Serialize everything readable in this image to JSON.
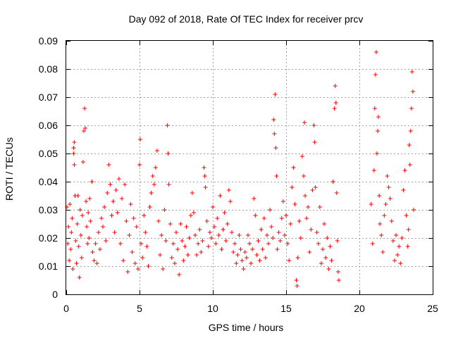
{
  "chart_data": {
    "type": "scatter",
    "title": "Day 092 of 2018, Rate Of TEC Index for receiver prcv",
    "xlabel": "GPS time / hours",
    "ylabel": "ROTI / TECUs",
    "xlim": [
      0,
      25
    ],
    "ylim": [
      0,
      0.09
    ],
    "xticks": [
      "0",
      "5",
      "10",
      "15",
      "20",
      "25"
    ],
    "yticks": [
      "0",
      "0.01",
      "0.02",
      "0.03",
      "0.04",
      "0.05",
      "0.06",
      "0.07",
      "0.08",
      "0.09"
    ],
    "grid": true,
    "marker": "plus",
    "color": "#ff0000",
    "series": [
      {
        "points": [
          [
            0.05,
            0.031
          ],
          [
            0.1,
            0.018
          ],
          [
            0.15,
            0.024
          ],
          [
            0.2,
            0.012
          ],
          [
            0.25,
            0.032
          ],
          [
            0.3,
            0.016
          ],
          [
            0.35,
            0.022
          ],
          [
            0.4,
            0.027
          ],
          [
            0.45,
            0.009
          ],
          [
            0.5,
            0.052
          ],
          [
            0.5,
            0.05
          ],
          [
            0.55,
            0.054
          ],
          [
            0.55,
            0.046
          ],
          [
            0.6,
            0.035
          ],
          [
            0.65,
            0.019
          ],
          [
            0.7,
            0.011
          ],
          [
            0.75,
            0.025
          ],
          [
            0.8,
            0.035
          ],
          [
            0.85,
            0.017
          ],
          [
            0.9,
            0.006
          ],
          [
            0.95,
            0.03
          ],
          [
            1.0,
            0.021
          ],
          [
            1.05,
            0.013
          ],
          [
            1.1,
            0.028
          ],
          [
            1.15,
            0.047
          ],
          [
            1.2,
            0.058
          ],
          [
            1.25,
            0.066
          ],
          [
            1.3,
            0.059
          ],
          [
            1.35,
            0.033
          ],
          [
            1.4,
            0.024
          ],
          [
            1.45,
            0.018
          ],
          [
            1.5,
            0.029
          ],
          [
            1.55,
            0.02
          ],
          [
            1.6,
            0.034
          ],
          [
            1.65,
            0.026
          ],
          [
            1.75,
            0.04
          ],
          [
            1.8,
            0.015
          ],
          [
            1.9,
            0.012
          ],
          [
            2.0,
            0.018
          ],
          [
            2.1,
            0.011
          ],
          [
            2.2,
            0.022
          ],
          [
            2.3,
            0.016
          ],
          [
            2.4,
            0.027
          ],
          [
            2.5,
            0.024
          ],
          [
            2.6,
            0.031
          ],
          [
            2.7,
            0.019
          ],
          [
            2.8,
            0.036
          ],
          [
            2.9,
            0.046
          ],
          [
            3.0,
            0.039
          ],
          [
            3.1,
            0.028
          ],
          [
            3.2,
            0.033
          ],
          [
            3.3,
            0.022
          ],
          [
            3.4,
            0.037
          ],
          [
            3.5,
            0.029
          ],
          [
            3.6,
            0.041
          ],
          [
            3.7,
            0.018
          ],
          [
            3.8,
            0.034
          ],
          [
            3.9,
            0.012
          ],
          [
            4.0,
            0.039
          ],
          [
            4.1,
            0.026
          ],
          [
            4.2,
            0.008
          ],
          [
            4.3,
            0.021
          ],
          [
            4.4,
            0.032
          ],
          [
            4.5,
            0.015
          ],
          [
            4.6,
            0.027
          ],
          [
            4.7,
            0.011
          ],
          [
            4.8,
            0.024
          ],
          [
            4.9,
            0.009
          ],
          [
            5.0,
            0.046
          ],
          [
            5.05,
            0.055
          ],
          [
            5.1,
            0.018
          ],
          [
            5.2,
            0.013
          ],
          [
            5.3,
            0.028
          ],
          [
            5.4,
            0.022
          ],
          [
            5.5,
            0.017
          ],
          [
            5.6,
            0.01
          ],
          [
            5.7,
            0.031
          ],
          [
            5.8,
            0.036
          ],
          [
            5.9,
            0.042
          ],
          [
            6.0,
            0.039
          ],
          [
            6.1,
            0.045
          ],
          [
            6.2,
            0.051
          ],
          [
            6.3,
            0.026
          ],
          [
            6.4,
            0.014
          ],
          [
            6.5,
            0.021
          ],
          [
            6.6,
            0.009
          ],
          [
            6.7,
            0.03
          ],
          [
            6.8,
            0.019
          ],
          [
            6.9,
            0.06
          ],
          [
            6.95,
            0.05
          ],
          [
            7.0,
            0.039
          ],
          [
            7.1,
            0.025
          ],
          [
            7.2,
            0.013
          ],
          [
            7.3,
            0.018
          ],
          [
            7.4,
            0.011
          ],
          [
            7.5,
            0.022
          ],
          [
            7.6,
            0.016
          ],
          [
            7.7,
            0.007
          ],
          [
            7.8,
            0.025
          ],
          [
            7.9,
            0.019
          ],
          [
            8.0,
            0.012
          ],
          [
            8.1,
            0.017
          ],
          [
            8.2,
            0.024
          ],
          [
            8.3,
            0.014
          ],
          [
            8.4,
            0.02
          ],
          [
            8.5,
            0.028
          ],
          [
            8.6,
            0.036
          ],
          [
            8.7,
            0.029
          ],
          [
            8.8,
            0.021
          ],
          [
            8.9,
            0.014
          ],
          [
            9.0,
            0.018
          ],
          [
            9.1,
            0.023
          ],
          [
            9.2,
            0.015
          ],
          [
            9.3,
            0.019
          ],
          [
            9.4,
            0.045
          ],
          [
            9.45,
            0.042
          ],
          [
            9.5,
            0.038
          ],
          [
            9.6,
            0.026
          ],
          [
            9.7,
            0.017
          ],
          [
            9.8,
            0.022
          ],
          [
            9.9,
            0.02
          ],
          [
            10.0,
            0.031
          ],
          [
            10.1,
            0.024
          ],
          [
            10.2,
            0.018
          ],
          [
            10.3,
            0.027
          ],
          [
            10.4,
            0.021
          ],
          [
            10.5,
            0.035
          ],
          [
            10.6,
            0.016
          ],
          [
            10.7,
            0.023
          ],
          [
            10.8,
            0.029
          ],
          [
            10.9,
            0.019
          ],
          [
            11.0,
            0.025
          ],
          [
            11.1,
            0.037
          ],
          [
            11.2,
            0.033
          ],
          [
            11.3,
            0.022
          ],
          [
            11.4,
            0.015
          ],
          [
            11.5,
            0.018
          ],
          [
            11.6,
            0.011
          ],
          [
            11.7,
            0.014
          ],
          [
            11.8,
            0.021
          ],
          [
            11.9,
            0.016
          ],
          [
            12.0,
            0.012
          ],
          [
            12.1,
            0.009
          ],
          [
            12.2,
            0.015
          ],
          [
            12.3,
            0.013
          ],
          [
            12.4,
            0.021
          ],
          [
            12.5,
            0.018
          ],
          [
            12.6,
            0.011
          ],
          [
            12.7,
            0.016
          ],
          [
            12.8,
            0.034
          ],
          [
            12.9,
            0.028
          ],
          [
            13.0,
            0.014
          ],
          [
            13.1,
            0.019
          ],
          [
            13.2,
            0.012
          ],
          [
            13.3,
            0.023
          ],
          [
            13.4,
            0.016
          ],
          [
            13.5,
            0.027
          ],
          [
            13.6,
            0.013
          ],
          [
            13.7,
            0.021
          ],
          [
            13.8,
            0.018
          ],
          [
            13.9,
            0.03
          ],
          [
            14.0,
            0.024
          ],
          [
            14.1,
            0.02
          ],
          [
            14.15,
            0.062
          ],
          [
            14.2,
            0.057
          ],
          [
            14.25,
            0.071
          ],
          [
            14.3,
            0.052
          ],
          [
            14.35,
            0.042
          ],
          [
            14.4,
            0.016
          ],
          [
            14.5,
            0.022
          ],
          [
            14.6,
            0.019
          ],
          [
            14.7,
            0.027
          ],
          [
            14.8,
            0.033
          ],
          [
            14.9,
            0.021
          ],
          [
            15.0,
            0.028
          ],
          [
            15.1,
            0.018
          ],
          [
            15.2,
            0.012
          ],
          [
            15.3,
            0.025
          ],
          [
            15.4,
            0.038
          ],
          [
            15.5,
            0.045
          ],
          [
            15.6,
            0.032
          ],
          [
            15.7,
            0.005
          ],
          [
            15.75,
            0.003
          ],
          [
            15.8,
            0.013
          ],
          [
            15.9,
            0.026
          ],
          [
            16.0,
            0.02
          ],
          [
            16.1,
            0.049
          ],
          [
            16.2,
            0.042
          ],
          [
            16.25,
            0.061
          ],
          [
            16.3,
            0.035
          ],
          [
            16.4,
            0.027
          ],
          [
            16.5,
            0.031
          ],
          [
            16.6,
            0.015
          ],
          [
            16.7,
            0.023
          ],
          [
            16.8,
            0.037
          ],
          [
            16.9,
            0.06
          ],
          [
            16.95,
            0.054
          ],
          [
            17.0,
            0.038
          ],
          [
            17.1,
            0.022
          ],
          [
            17.2,
            0.018
          ],
          [
            17.3,
            0.031
          ],
          [
            17.4,
            0.011
          ],
          [
            17.5,
            0.016
          ],
          [
            17.6,
            0.025
          ],
          [
            17.7,
            0.013
          ],
          [
            17.8,
            0.02
          ],
          [
            17.9,
            0.009
          ],
          [
            18.0,
            0.017
          ],
          [
            18.1,
            0.012
          ],
          [
            18.2,
            0.04
          ],
          [
            18.3,
            0.066
          ],
          [
            18.35,
            0.074
          ],
          [
            18.4,
            0.068
          ],
          [
            18.45,
            0.036
          ],
          [
            18.5,
            0.019
          ],
          [
            18.55,
            0.008
          ],
          [
            18.6,
            0.005
          ],
          [
            20.8,
            0.032
          ],
          [
            20.9,
            0.018
          ],
          [
            21.0,
            0.044
          ],
          [
            21.05,
            0.066
          ],
          [
            21.1,
            0.078
          ],
          [
            21.15,
            0.086
          ],
          [
            21.2,
            0.05
          ],
          [
            21.25,
            0.058
          ],
          [
            21.3,
            0.063
          ],
          [
            21.35,
            0.035
          ],
          [
            21.4,
            0.025
          ],
          [
            21.5,
            0.021
          ],
          [
            21.6,
            0.015
          ],
          [
            21.7,
            0.028
          ],
          [
            21.8,
            0.032
          ],
          [
            21.9,
            0.042
          ],
          [
            22.0,
            0.038
          ],
          [
            22.1,
            0.034
          ],
          [
            22.2,
            0.026
          ],
          [
            22.3,
            0.019
          ],
          [
            22.4,
            0.012
          ],
          [
            22.5,
            0.021
          ],
          [
            22.6,
            0.014
          ],
          [
            22.7,
            0.017
          ],
          [
            22.8,
            0.011
          ],
          [
            22.9,
            0.02
          ],
          [
            23.0,
            0.037
          ],
          [
            23.1,
            0.044
          ],
          [
            23.2,
            0.028
          ],
          [
            23.3,
            0.017
          ],
          [
            23.35,
            0.023
          ],
          [
            23.4,
            0.053
          ],
          [
            23.45,
            0.046
          ],
          [
            23.5,
            0.058
          ],
          [
            23.55,
            0.066
          ],
          [
            23.6,
            0.079
          ],
          [
            23.65,
            0.072
          ],
          [
            23.7,
            0.03
          ]
        ]
      }
    ]
  }
}
